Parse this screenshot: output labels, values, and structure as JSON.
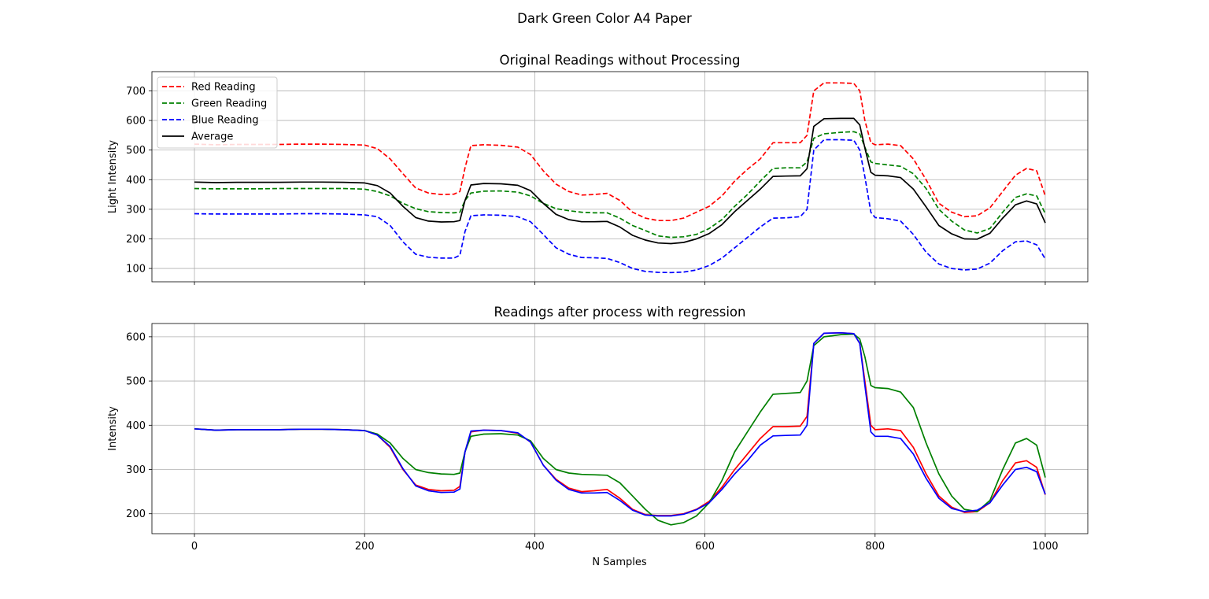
{
  "figure": {
    "title": "Dark Green Color A4 Paper",
    "xlabel": "N Samples"
  },
  "chart_data": [
    {
      "type": "line",
      "title": "Original Readings without Processing",
      "xlabel": "",
      "ylabel": "Light Intensity",
      "xlim": [
        -50,
        1050
      ],
      "ylim": [
        55,
        765
      ],
      "xticks": [
        0,
        200,
        400,
        600,
        800,
        1000
      ],
      "yticks": [
        100,
        200,
        300,
        400,
        500,
        600,
        700
      ],
      "show_xtick_labels": false,
      "grid": true,
      "legend": "top-left",
      "x": [
        0,
        25,
        50,
        75,
        100,
        125,
        150,
        175,
        200,
        215,
        230,
        245,
        260,
        275,
        290,
        305,
        312,
        318,
        325,
        340,
        360,
        380,
        395,
        410,
        425,
        440,
        455,
        470,
        485,
        500,
        515,
        530,
        545,
        560,
        575,
        590,
        605,
        620,
        635,
        650,
        665,
        680,
        695,
        712,
        720,
        728,
        740,
        760,
        775,
        782,
        788,
        795,
        800,
        815,
        830,
        845,
        860,
        875,
        890,
        905,
        920,
        935,
        950,
        965,
        978,
        990,
        1000
      ],
      "series": [
        {
          "name": "Red Reading",
          "color": "#ff0000",
          "style": "dashed",
          "values": [
            520,
            518,
            519,
            519,
            519,
            520,
            520,
            519,
            517,
            505,
            470,
            420,
            372,
            355,
            350,
            351,
            360,
            440,
            515,
            518,
            516,
            510,
            485,
            430,
            385,
            360,
            348,
            350,
            354,
            330,
            290,
            270,
            262,
            262,
            270,
            290,
            310,
            345,
            395,
            435,
            470,
            525,
            525,
            525,
            550,
            700,
            727,
            727,
            725,
            700,
            600,
            525,
            518,
            520,
            515,
            470,
            400,
            320,
            290,
            275,
            278,
            305,
            360,
            415,
            438,
            430,
            345
          ]
        },
        {
          "name": "Green Reading",
          "color": "#008000",
          "style": "dashed",
          "values": [
            370,
            369,
            369,
            369,
            370,
            370,
            370,
            370,
            368,
            360,
            345,
            320,
            302,
            292,
            289,
            288,
            290,
            330,
            355,
            361,
            362,
            358,
            345,
            320,
            302,
            295,
            290,
            288,
            288,
            270,
            245,
            228,
            210,
            205,
            207,
            215,
            235,
            265,
            310,
            350,
            395,
            438,
            440,
            440,
            460,
            540,
            555,
            560,
            562,
            555,
            510,
            460,
            455,
            450,
            445,
            420,
            370,
            300,
            260,
            230,
            220,
            235,
            290,
            340,
            352,
            345,
            285
          ]
        },
        {
          "name": "Blue Reading",
          "color": "#0000ff",
          "style": "dashed",
          "values": [
            285,
            284,
            284,
            284,
            284,
            285,
            285,
            284,
            281,
            275,
            245,
            190,
            148,
            138,
            135,
            135,
            145,
            225,
            278,
            281,
            280,
            275,
            258,
            215,
            170,
            148,
            137,
            136,
            134,
            120,
            100,
            90,
            87,
            86,
            88,
            95,
            110,
            135,
            170,
            205,
            240,
            270,
            271,
            275,
            300,
            500,
            535,
            535,
            533,
            500,
            410,
            290,
            272,
            268,
            260,
            215,
            155,
            115,
            100,
            95,
            98,
            118,
            160,
            190,
            193,
            180,
            132
          ]
        },
        {
          "name": "Average",
          "color": "#000000",
          "style": "solid",
          "values": [
            392,
            390,
            391,
            391,
            391,
            392,
            392,
            391,
            389,
            380,
            355,
            310,
            272,
            260,
            257,
            258,
            262,
            330,
            382,
            387,
            386,
            381,
            363,
            320,
            283,
            265,
            258,
            258,
            259,
            240,
            212,
            196,
            186,
            184,
            188,
            200,
            218,
            248,
            292,
            330,
            368,
            411,
            412,
            413,
            437,
            580,
            606,
            607,
            607,
            585,
            507,
            425,
            415,
            413,
            407,
            368,
            308,
            245,
            217,
            200,
            199,
            219,
            270,
            315,
            328,
            318,
            254
          ]
        }
      ]
    },
    {
      "type": "line",
      "title": "Readings after process with regression",
      "xlabel": "N Samples",
      "ylabel": "Intensity",
      "xlim": [
        -50,
        1050
      ],
      "ylim": [
        155,
        630
      ],
      "xticks": [
        0,
        200,
        400,
        600,
        800,
        1000
      ],
      "yticks": [
        200,
        300,
        400,
        500,
        600
      ],
      "show_xtick_labels": true,
      "grid": true,
      "legend": "",
      "x": [
        0,
        25,
        50,
        75,
        100,
        125,
        150,
        175,
        200,
        215,
        230,
        245,
        260,
        275,
        290,
        305,
        312,
        318,
        325,
        340,
        360,
        380,
        395,
        410,
        425,
        440,
        455,
        470,
        485,
        500,
        515,
        530,
        545,
        560,
        575,
        590,
        605,
        620,
        635,
        650,
        665,
        680,
        695,
        712,
        720,
        728,
        740,
        760,
        775,
        782,
        788,
        795,
        800,
        815,
        830,
        845,
        860,
        875,
        890,
        905,
        920,
        935,
        950,
        965,
        978,
        990,
        1000
      ],
      "series": [
        {
          "name": "",
          "color": "#ff0000",
          "style": "solid",
          "values": [
            392,
            389,
            390,
            390,
            390,
            391,
            391,
            390,
            388,
            378,
            350,
            300,
            265,
            255,
            252,
            253,
            262,
            340,
            385,
            389,
            388,
            382,
            362,
            310,
            278,
            258,
            250,
            252,
            255,
            235,
            210,
            198,
            196,
            196,
            200,
            210,
            228,
            260,
            300,
            335,
            370,
            397,
            397,
            398,
            420,
            585,
            608,
            609,
            607,
            585,
            500,
            400,
            390,
            392,
            388,
            350,
            290,
            240,
            215,
            203,
            205,
            225,
            275,
            315,
            320,
            305,
            243
          ]
        },
        {
          "name": "",
          "color": "#008000",
          "style": "solid",
          "values": [
            392,
            389,
            390,
            390,
            390,
            391,
            391,
            390,
            388,
            380,
            360,
            325,
            300,
            293,
            290,
            289,
            292,
            340,
            375,
            380,
            381,
            378,
            365,
            325,
            300,
            292,
            289,
            288,
            287,
            270,
            240,
            210,
            185,
            175,
            180,
            195,
            225,
            275,
            340,
            385,
            430,
            470,
            472,
            474,
            500,
            580,
            600,
            605,
            606,
            595,
            555,
            490,
            485,
            483,
            475,
            440,
            360,
            290,
            240,
            210,
            205,
            230,
            300,
            360,
            370,
            355,
            282
          ]
        },
        {
          "name": "",
          "color": "#0000ff",
          "style": "solid",
          "values": [
            392,
            389,
            390,
            390,
            390,
            391,
            391,
            390,
            388,
            378,
            352,
            302,
            263,
            252,
            248,
            249,
            256,
            340,
            387,
            389,
            388,
            383,
            362,
            310,
            276,
            255,
            247,
            247,
            248,
            230,
            208,
            197,
            195,
            195,
            199,
            209,
            225,
            255,
            290,
            320,
            355,
            376,
            377,
            378,
            400,
            585,
            608,
            609,
            607,
            585,
            490,
            385,
            375,
            375,
            370,
            335,
            280,
            235,
            212,
            205,
            208,
            225,
            265,
            300,
            305,
            295,
            244
          ]
        }
      ]
    }
  ]
}
